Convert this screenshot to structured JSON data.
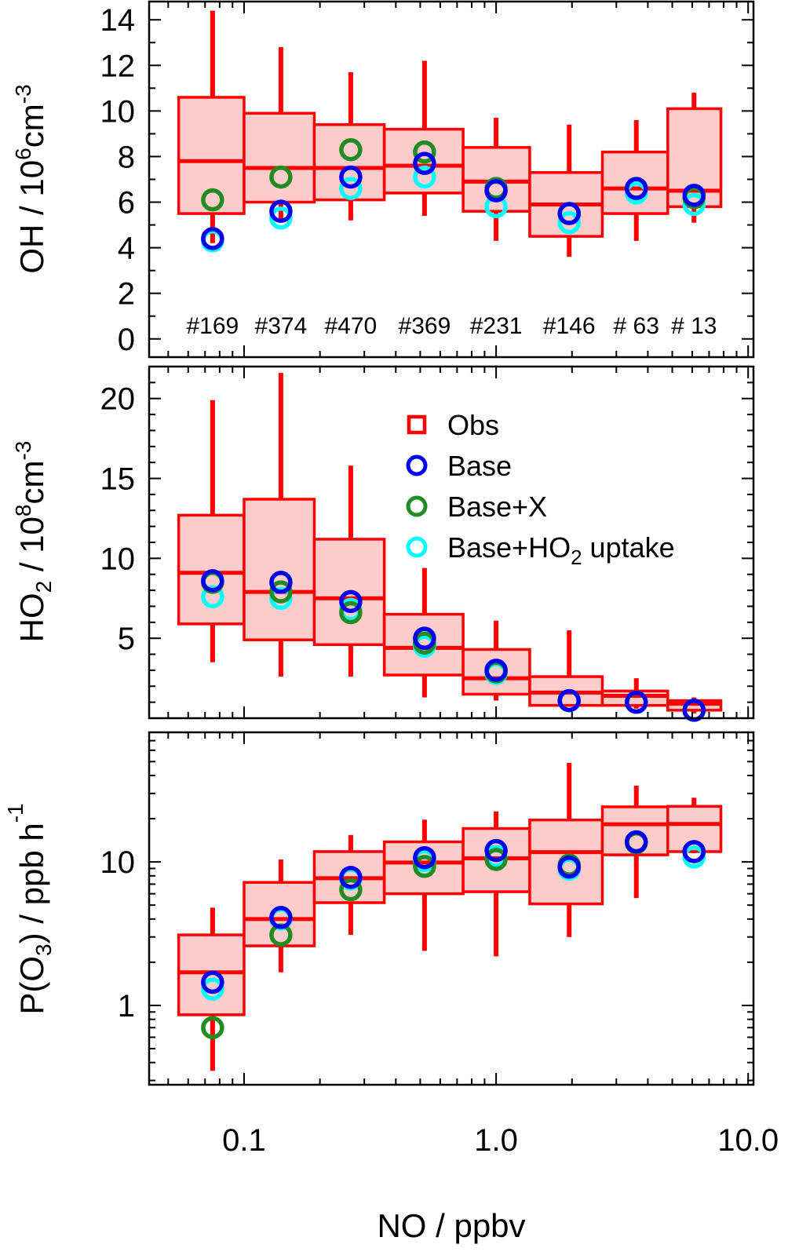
{
  "colors": {
    "obs": "#ff0000",
    "obs_fill": "#ffcccc",
    "base": "#0000ee",
    "base_x": "#228b22",
    "base_ho2": "#00ffff"
  },
  "xaxis": {
    "label": "NO / ppbv",
    "scale": "log",
    "range": [
      0.042,
      10.5
    ],
    "tick_labels": [
      "0.1",
      "1.0",
      "10.0"
    ]
  },
  "legend": {
    "placement": "top-right of middle panel",
    "items": [
      {
        "label": "Obs",
        "marker": "square",
        "color": "#ff0000"
      },
      {
        "label": "Base",
        "marker": "circle",
        "color": "#0000ee"
      },
      {
        "label": "Base+X",
        "marker": "circle",
        "color": "#228b22"
      },
      {
        "label_main": "Base+HO",
        "label_sub": "2",
        "label_tail": " uptake",
        "marker": "circle",
        "color": "#00ffff"
      }
    ]
  },
  "chart_data": [
    {
      "type": "box",
      "ylabel_main": "OH / 10",
      "ylabel_sup1": "6",
      "ylabel_mid": "cm",
      "ylabel_sup2": "-3",
      "yscale": "linear",
      "ylim": [
        -0.8,
        14.8
      ],
      "yticks": [
        0,
        2,
        4,
        6,
        8,
        10,
        12,
        14
      ],
      "counts": [
        "#169",
        "#374",
        "#470",
        "#369",
        "#231",
        "#146",
        "# 63",
        "# 13"
      ],
      "x": [
        0.075,
        0.14,
        0.265,
        0.52,
        1.0,
        1.95,
        3.6,
        6.1
      ],
      "bins": [
        [
          0.055,
          0.1
        ],
        [
          0.1,
          0.19
        ],
        [
          0.19,
          0.36
        ],
        [
          0.36,
          0.74
        ],
        [
          0.74,
          1.36
        ],
        [
          1.36,
          2.64
        ],
        [
          2.64,
          4.8
        ],
        [
          4.8,
          7.8
        ]
      ],
      "obs": {
        "whisker_low": [
          4.2,
          5.2,
          5.2,
          5.4,
          4.3,
          3.6,
          4.3,
          5.1
        ],
        "q25": [
          5.5,
          6.0,
          6.1,
          6.4,
          5.6,
          4.5,
          5.5,
          5.8
        ],
        "median": [
          7.8,
          7.5,
          7.5,
          7.6,
          6.9,
          5.9,
          6.6,
          6.5
        ],
        "q75": [
          10.6,
          9.9,
          9.4,
          9.2,
          8.4,
          7.3,
          8.2,
          10.1
        ],
        "whisker_high": [
          14.4,
          12.8,
          11.7,
          12.2,
          9.7,
          9.4,
          9.6,
          10.8
        ]
      },
      "series": [
        {
          "name": "Base+HO2 uptake",
          "values": [
            4.3,
            5.3,
            6.6,
            7.1,
            5.8,
            5.1,
            6.4,
            5.9
          ]
        },
        {
          "name": "Base+X",
          "values": [
            6.1,
            7.1,
            8.3,
            8.2,
            6.6,
            5.5,
            6.6,
            6.2
          ]
        },
        {
          "name": "Base",
          "values": [
            4.4,
            5.6,
            7.1,
            7.7,
            6.5,
            5.5,
            6.6,
            6.3
          ]
        }
      ]
    },
    {
      "type": "box",
      "ylabel_main": "HO",
      "ylabel_sub": "2",
      "ylabel_rest": " / 10",
      "ylabel_sup1": "8",
      "ylabel_mid": "cm",
      "ylabel_sup2": "-3",
      "yscale": "linear",
      "ylim": [
        0,
        22
      ],
      "yticks": [
        5,
        10,
        15,
        20
      ],
      "x": [
        0.075,
        0.14,
        0.265,
        0.52,
        1.0,
        1.95,
        3.6,
        6.1
      ],
      "bins": [
        [
          0.055,
          0.1
        ],
        [
          0.1,
          0.19
        ],
        [
          0.19,
          0.36
        ],
        [
          0.36,
          0.74
        ],
        [
          0.74,
          1.36
        ],
        [
          1.36,
          2.64
        ],
        [
          2.64,
          4.8
        ],
        [
          4.8,
          7.8
        ]
      ],
      "obs": {
        "whisker_low": [
          3.5,
          2.6,
          2.6,
          1.3,
          1.1,
          0.9,
          0.6,
          0.3
        ],
        "q25": [
          5.9,
          4.9,
          4.6,
          2.7,
          1.5,
          0.8,
          0.8,
          0.5
        ],
        "median": [
          9.1,
          7.9,
          7.5,
          4.4,
          2.5,
          1.6,
          1.4,
          0.9
        ],
        "q75": [
          12.7,
          13.7,
          11.2,
          6.5,
          4.3,
          2.6,
          1.7,
          1.1
        ],
        "whisker_high": [
          19.9,
          21.6,
          15.8,
          9.4,
          6.1,
          5.5,
          2.5,
          1.3
        ]
      },
      "series": [
        {
          "name": "Base+HO2 uptake",
          "values": [
            7.6,
            7.5,
            6.8,
            4.5,
            2.8,
            1.1,
            1.0,
            0.5
          ]
        },
        {
          "name": "Base+X",
          "values": [
            8.5,
            7.9,
            6.6,
            4.7,
            2.9,
            1.1,
            1.0,
            0.5
          ]
        },
        {
          "name": "Base",
          "values": [
            8.6,
            8.5,
            7.3,
            5.0,
            3.0,
            1.1,
            1.0,
            0.5
          ]
        }
      ]
    },
    {
      "type": "box",
      "ylabel_main": "P(O",
      "ylabel_sub": "3",
      "ylabel_rest": ") / ppb h",
      "ylabel_sup1": "-1",
      "yscale": "log",
      "ylim": [
        0.28,
        80
      ],
      "yticks": [
        1,
        10
      ],
      "x": [
        0.075,
        0.14,
        0.265,
        0.52,
        1.0,
        1.95,
        3.6,
        6.1
      ],
      "bins": [
        [
          0.055,
          0.1
        ],
        [
          0.1,
          0.19
        ],
        [
          0.19,
          0.36
        ],
        [
          0.36,
          0.74
        ],
        [
          0.74,
          1.36
        ],
        [
          1.36,
          2.64
        ],
        [
          2.64,
          4.8
        ],
        [
          4.8,
          7.8
        ]
      ],
      "obs": {
        "whisker_low": [
          0.35,
          1.7,
          3.1,
          2.4,
          2.2,
          3.0,
          5.6,
          11.5
        ],
        "q25": [
          0.86,
          2.6,
          5.2,
          6.0,
          6.2,
          5.1,
          11.2,
          11.8
        ],
        "median": [
          1.7,
          4.0,
          7.7,
          9.9,
          10.6,
          11.7,
          18.3,
          18.4
        ],
        "q75": [
          3.1,
          7.2,
          11.8,
          13.8,
          17.1,
          19.6,
          24.2,
          24.4
        ],
        "whisker_high": [
          4.8,
          10.4,
          15.4,
          19.7,
          22.5,
          49.0,
          34.0,
          28.0
        ]
      },
      "series": [
        {
          "name": "Base+HO2 uptake",
          "values": [
            1.3,
            4.0,
            7.6,
            10.2,
            10.9,
            8.9,
            13.8,
            10.8
          ]
        },
        {
          "name": "Base+X",
          "values": [
            0.7,
            3.1,
            6.4,
            9.3,
            10.4,
            9.5,
            13.6,
            11.8
          ]
        },
        {
          "name": "Base",
          "values": [
            1.45,
            4.1,
            7.8,
            10.7,
            12.0,
            9.2,
            13.8,
            11.8
          ]
        }
      ]
    }
  ]
}
